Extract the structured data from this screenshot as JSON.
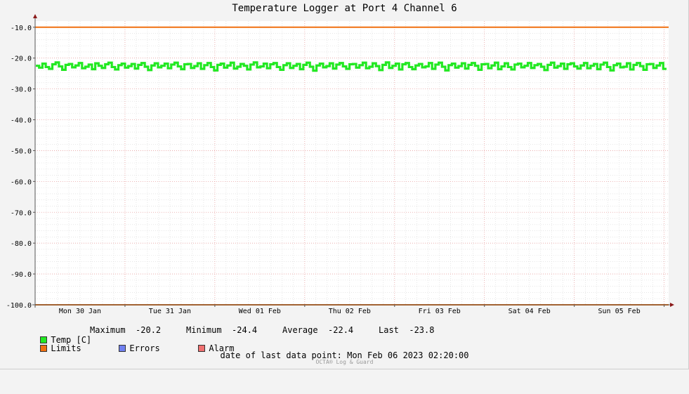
{
  "chart_data": {
    "type": "line",
    "title": "Temperature Logger at Port 4 Channel 6",
    "y_ticks": [
      "-10.0",
      "-20.0",
      "-30.0",
      "-40.0",
      "-50.0",
      "-60.0",
      "-70.0",
      "-80.0",
      "-90.0",
      "-100.0"
    ],
    "ylim": [
      -100,
      -8
    ],
    "x_ticks": [
      "Mon 30 Jan",
      "Tue 31 Jan",
      "Wed 01 Feb",
      "Thu 02 Feb",
      "Fri 03 Feb",
      "Sat 04 Feb",
      "Sun 05 Feb"
    ],
    "x_range_days": [
      0,
      7.05
    ],
    "grid": true,
    "limits": [
      -10,
      -100
    ],
    "series": [
      {
        "name": "Temp [C]",
        "color": "#22e822",
        "band": {
          "min": -24.4,
          "max": -20.2
        },
        "values": [
          -22.5,
          -23.1,
          -21.8,
          -22.9,
          -23.5,
          -22.0,
          -21.4,
          -22.7,
          -23.8,
          -22.2,
          -21.9,
          -23.0,
          -22.4,
          -21.6,
          -23.3,
          -22.8,
          -22.1,
          -23.6,
          -21.7,
          -22.5,
          -23.2,
          -22.0,
          -21.5,
          -22.9,
          -23.7,
          -22.3,
          -21.8,
          -23.1,
          -22.6,
          -21.9,
          -23.4,
          -22.2,
          -21.6,
          -22.8,
          -23.9,
          -22.4,
          -21.7,
          -23.0,
          -22.5,
          -21.8,
          -23.3,
          -22.1,
          -21.5,
          -22.7,
          -23.6,
          -22.0,
          -21.9,
          -23.2,
          -22.6,
          -21.7,
          -23.5,
          -22.3,
          -21.6,
          -22.9,
          -24.0,
          -22.2,
          -21.8,
          -23.1,
          -22.4,
          -21.5,
          -23.4,
          -22.8,
          -21.9,
          -22.5,
          -23.7,
          -22.1,
          -21.4,
          -23.0,
          -22.7,
          -21.8,
          -23.3,
          -22.0,
          -21.6,
          -22.9,
          -23.8,
          -22.3,
          -21.7,
          -23.2,
          -22.5,
          -21.9,
          -23.6,
          -22.2,
          -21.5,
          -22.8,
          -24.1,
          -22.4,
          -21.8,
          -23.0,
          -22.6,
          -21.7,
          -23.4,
          -22.1,
          -21.6,
          -22.7,
          -23.5,
          -22.0,
          -21.9,
          -23.1,
          -22.3,
          -21.5,
          -23.3,
          -22.8,
          -21.7,
          -22.6,
          -23.9,
          -22.2,
          -21.4,
          -23.2,
          -22.5,
          -21.8,
          -23.7,
          -22.0,
          -21.6,
          -22.9,
          -23.6,
          -22.4,
          -21.9,
          -23.0,
          -22.7,
          -21.6,
          -23.5,
          -22.1,
          -21.5,
          -22.8,
          -24.0,
          -22.3,
          -21.8,
          -23.1,
          -22.6,
          -21.7,
          -23.4,
          -22.2,
          -21.6,
          -22.5,
          -23.8,
          -22.0,
          -21.9,
          -23.3,
          -22.4,
          -21.5,
          -23.6,
          -22.7,
          -21.7,
          -22.9,
          -23.7,
          -22.1,
          -21.8,
          -23.0,
          -22.5,
          -21.6,
          -23.2,
          -22.3,
          -21.9,
          -22.8,
          -23.9,
          -22.2,
          -21.5,
          -23.1,
          -22.6,
          -21.8,
          -23.5,
          -22.0,
          -21.7,
          -22.7,
          -23.4,
          -22.4,
          -21.6,
          -23.3,
          -22.5,
          -21.9,
          -23.6,
          -22.1,
          -21.5,
          -22.9,
          -24.0,
          -22.3,
          -21.8,
          -23.0,
          -22.8,
          -21.7,
          -23.7,
          -22.2,
          -21.6,
          -22.6,
          -23.8,
          -22.0,
          -21.9,
          -23.2,
          -22.4,
          -21.6,
          -23.5
        ]
      },
      {
        "name": "Limits",
        "color": "#f07010"
      },
      {
        "name": "Errors",
        "color": "#7080f0"
      },
      {
        "name": "Alarm",
        "color": "#f07070"
      }
    ],
    "stats": {
      "maximum_label": "Maximum",
      "maximum": "-20.2",
      "minimum_label": "Minimum",
      "minimum": "-24.4",
      "average_label": "Average",
      "average": "-22.4",
      "last_label": "Last",
      "last": "-23.8"
    }
  },
  "footer": {
    "last_data_label": "date of last data point:",
    "last_data_value": "Mon Feb 06 2023 02:20:00",
    "watermark": "OCTA® Log & Guard"
  }
}
